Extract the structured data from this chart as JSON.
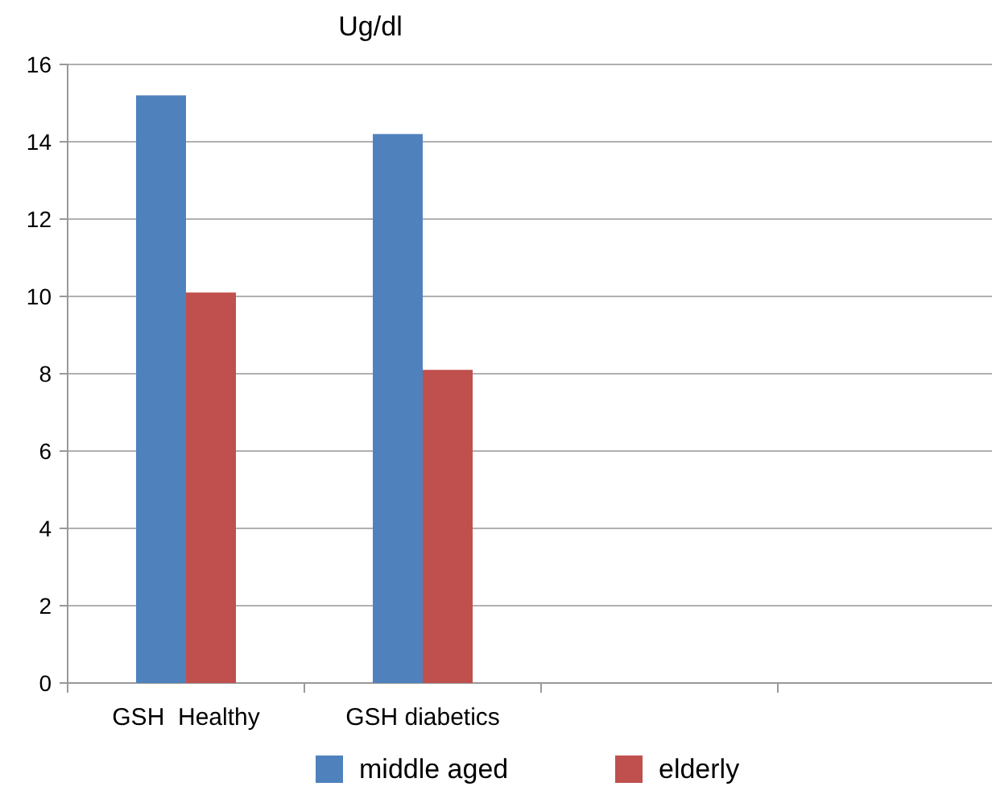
{
  "chart_data": {
    "type": "bar",
    "title": "Ug/dl",
    "categories": [
      "GSH  Healthy",
      "GSH diabetics",
      null,
      null
    ],
    "series": [
      {
        "name": "middle aged",
        "color": "#4f81bd",
        "values": [
          15.2,
          14.2,
          null,
          null
        ]
      },
      {
        "name": "elderly",
        "color": "#c0504d",
        "values": [
          10.1,
          8.1,
          null,
          null
        ]
      }
    ],
    "ylim": [
      0,
      16
    ],
    "yticks": [
      0,
      2,
      4,
      6,
      8,
      10,
      12,
      14,
      16
    ],
    "grid": "y",
    "legend": "bottom"
  }
}
